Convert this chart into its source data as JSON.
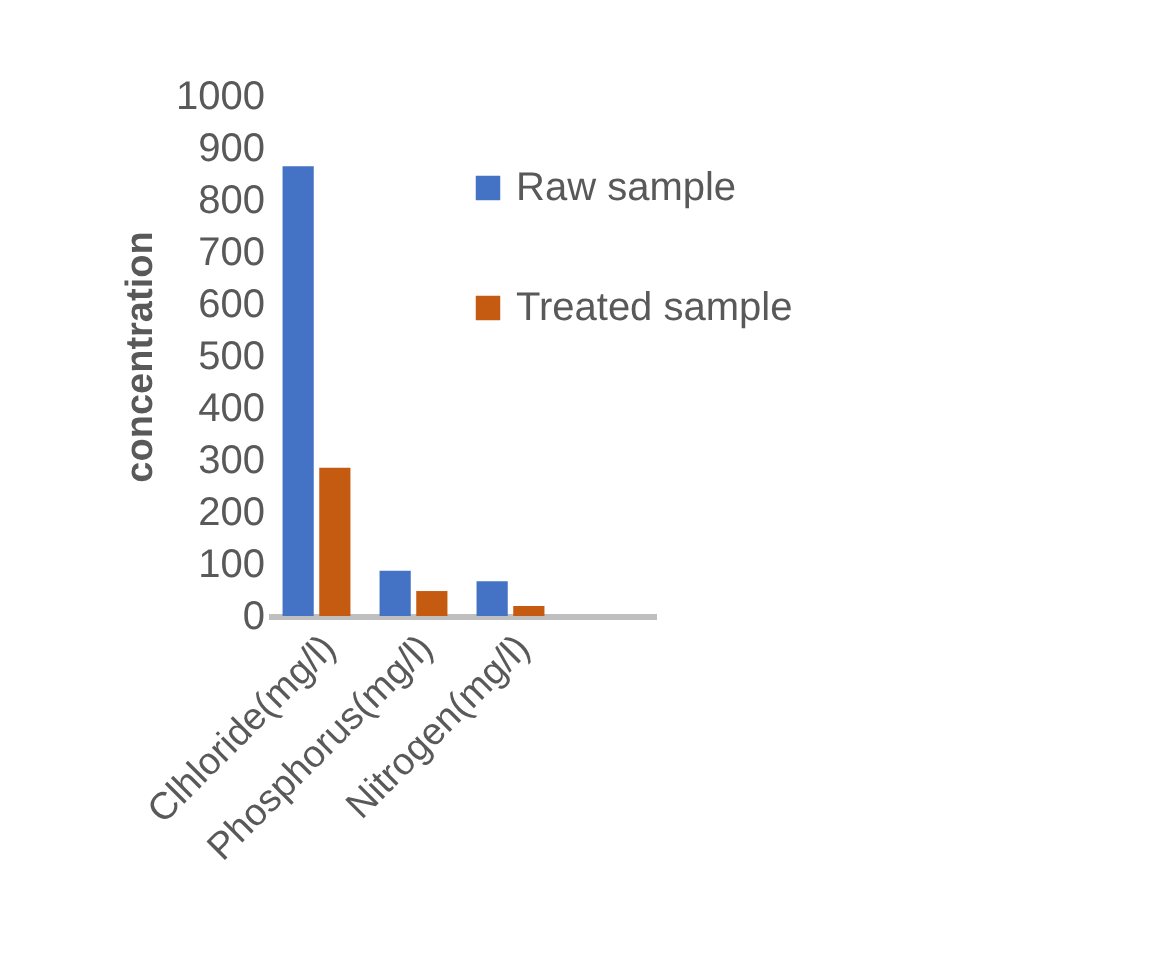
{
  "chart_data": {
    "type": "bar",
    "ylabel": "concentration",
    "categories": [
      "Clhloride(mg/l)",
      "Phosphorus(mg/l)",
      "Nitrogen(mg/l)",
      null
    ],
    "series": [
      {
        "name": "Raw sample",
        "color": "#4472c4",
        "values": [
          865,
          87,
          67,
          null
        ]
      },
      {
        "name": "Treated sample",
        "color": "#c55a11",
        "values": [
          285,
          48,
          19,
          null
        ]
      }
    ],
    "ylim": [
      0,
      1000
    ],
    "yticks": [
      0,
      100,
      200,
      300,
      400,
      500,
      600,
      700,
      800,
      900,
      1000
    ],
    "grid": false,
    "legend": "top right"
  }
}
